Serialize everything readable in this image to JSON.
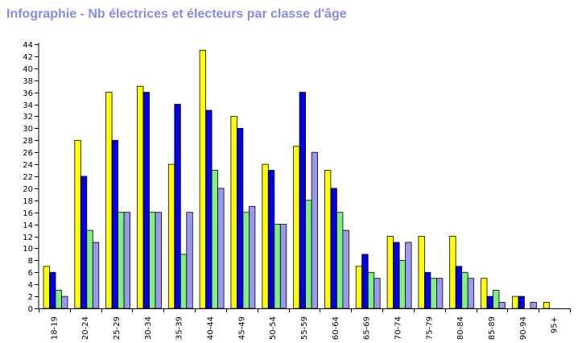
{
  "chart_data": {
    "type": "bar",
    "title": "Infographie - Nb électrices et électeurs par classe d'âge",
    "xlabel": "",
    "ylabel": "",
    "ylim": [
      0,
      44
    ],
    "ytick_step": 2,
    "grid": false,
    "legend": "none",
    "categories": [
      "18-19",
      "20-24",
      "25-29",
      "30-34",
      "35-39",
      "40-44",
      "45-49",
      "50-54",
      "55-59",
      "60-64",
      "65-69",
      "70-74",
      "75-79",
      "80-84",
      "85-89",
      "90-94",
      "95+"
    ],
    "series": [
      {
        "values": [
          7,
          28,
          36,
          37,
          24,
          43,
          32,
          24,
          27,
          23,
          7,
          12,
          12,
          12,
          5,
          2,
          1
        ],
        "color": "#ffff00"
      },
      {
        "values": [
          6,
          22,
          28,
          36,
          34,
          33,
          30,
          23,
          36,
          20,
          9,
          11,
          6,
          7,
          2,
          2,
          0
        ],
        "color": "#0000e0"
      },
      {
        "values": [
          3,
          13,
          16,
          16,
          9,
          23,
          16,
          14,
          18,
          16,
          6,
          8,
          5,
          6,
          3,
          0,
          0
        ],
        "color": "#80f080"
      },
      {
        "values": [
          2,
          11,
          16,
          16,
          16,
          20,
          17,
          14,
          26,
          13,
          5,
          11,
          5,
          5,
          1,
          1,
          0
        ],
        "color": "#9999ee"
      }
    ],
    "bar_stroke": "#000000"
  }
}
